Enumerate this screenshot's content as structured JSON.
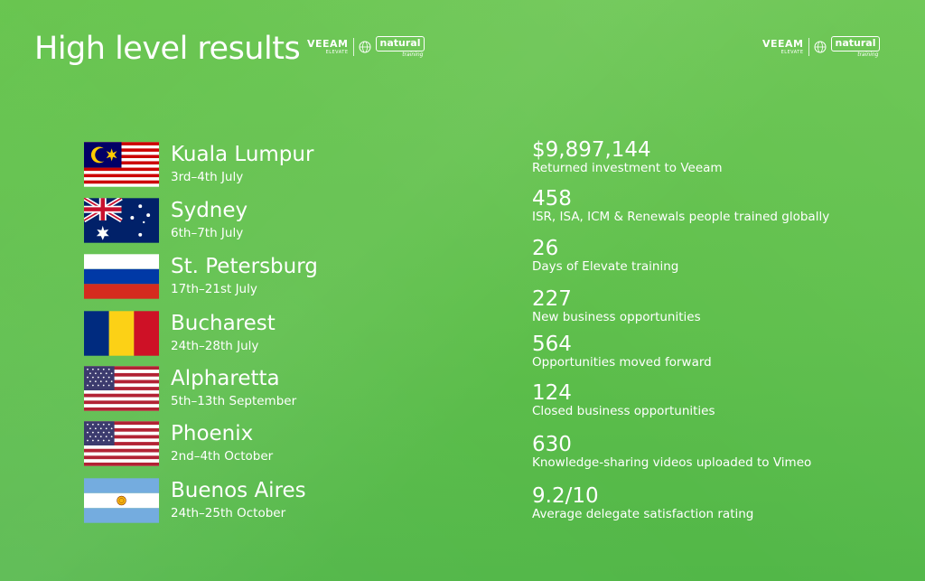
{
  "header": {
    "title": "High level results",
    "logos": [
      {
        "brand": "VEEAM",
        "sub": "ELEVATE",
        "partner": "natural",
        "partner_sub": "training"
      },
      {
        "brand": "VEEAM",
        "sub": "ELEVATE",
        "partner": "natural",
        "partner_sub": "training"
      }
    ]
  },
  "cities": [
    {
      "name": "Kuala Lumpur",
      "dates": "3rd–4th July",
      "flag_icon": "malaysia-flag-icon"
    },
    {
      "name": "Sydney",
      "dates": "6th–7th July",
      "flag_icon": "australia-flag-icon"
    },
    {
      "name": "St. Petersburg",
      "dates": "17th–21st July",
      "flag_icon": "russia-flag-icon"
    },
    {
      "name": "Bucharest",
      "dates": "24th–28th July",
      "flag_icon": "romania-flag-icon"
    },
    {
      "name": "Alpharetta",
      "dates": "5th–13th September",
      "flag_icon": "usa-flag-icon"
    },
    {
      "name": "Phoenix",
      "dates": "2nd–4th October",
      "flag_icon": "usa-flag-icon"
    },
    {
      "name": "Buenos Aires",
      "dates": "24th–25th October",
      "flag_icon": "argentina-flag-icon"
    }
  ],
  "stats": [
    {
      "value": "$9,897,144",
      "label": "Returned investment to Veeam"
    },
    {
      "value": "458",
      "label": "ISR, ISA, ICM & Renewals people trained globally"
    },
    {
      "value": "26",
      "label": "Days of Elevate training"
    },
    {
      "value": "227",
      "label": "New business opportunities"
    },
    {
      "value": "564",
      "label": "Opportunities moved forward"
    },
    {
      "value": "124",
      "label": "Closed business opportunities"
    },
    {
      "value": "630",
      "label": "Knowledge-sharing videos uploaded to Vimeo"
    },
    {
      "value": "9.2/10",
      "label": "Average delegate satisfaction rating"
    }
  ],
  "colors": {
    "background": "#5dbf4a",
    "text": "#ffffff"
  }
}
